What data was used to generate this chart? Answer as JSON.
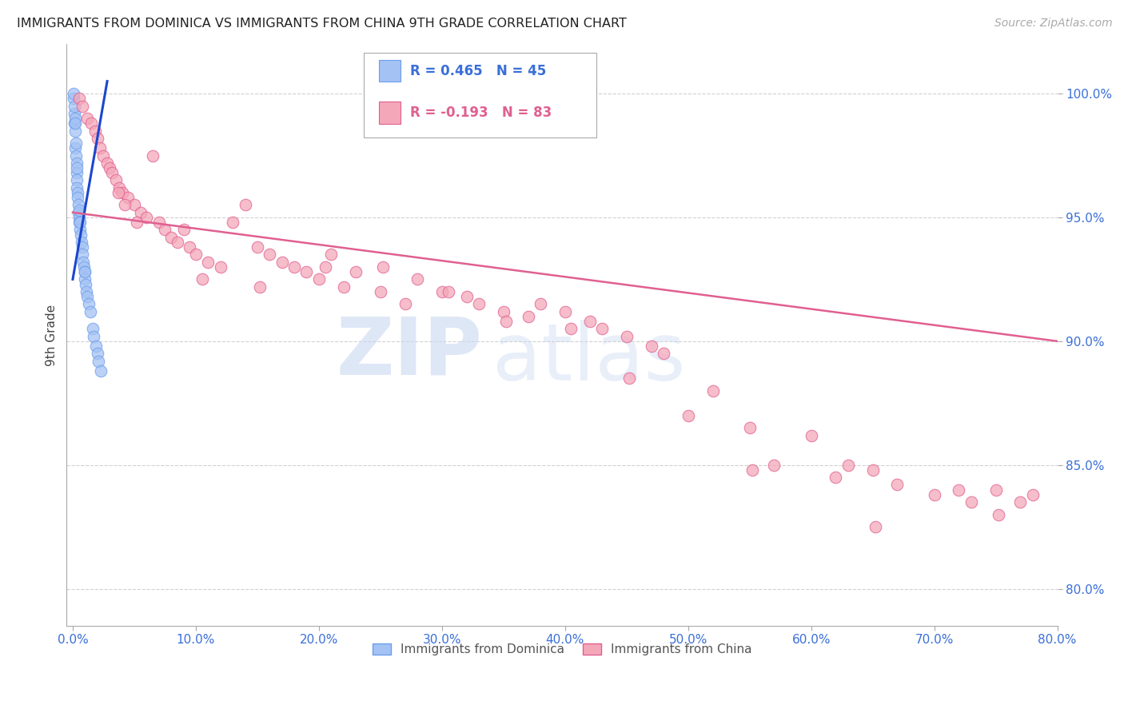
{
  "title": "IMMIGRANTS FROM DOMINICA VS IMMIGRANTS FROM CHINA 9TH GRADE CORRELATION CHART",
  "source": "Source: ZipAtlas.com",
  "ylabel": "9th Grade",
  "x_tick_labels": [
    "0.0%",
    "10.0%",
    "20.0%",
    "30.0%",
    "40.0%",
    "50.0%",
    "60.0%",
    "70.0%",
    "80.0%"
  ],
  "x_tick_values": [
    0.0,
    10.0,
    20.0,
    30.0,
    40.0,
    50.0,
    60.0,
    70.0,
    80.0
  ],
  "y_tick_labels": [
    "80.0%",
    "85.0%",
    "90.0%",
    "95.0%",
    "100.0%"
  ],
  "y_tick_values": [
    80.0,
    85.0,
    90.0,
    95.0,
    100.0
  ],
  "xlim": [
    -0.5,
    80.0
  ],
  "ylim": [
    78.5,
    102.0
  ],
  "dominica_color": "#a4c2f4",
  "china_color": "#f4a7b9",
  "dominica_edge": "#6d9eeb",
  "china_edge": "#e06090",
  "blue_line_color": "#1a47cc",
  "pink_line_color": "#e06090",
  "R_dominica": 0.465,
  "N_dominica": 45,
  "R_china": -0.193,
  "N_china": 83,
  "legend_label1": "Immigrants from Dominica",
  "legend_label2": "Immigrants from China",
  "watermark_zip": "ZIP",
  "watermark_atlas": "atlas",
  "blue_line_x0": 0.0,
  "blue_line_y0": 92.5,
  "blue_line_x1": 2.8,
  "blue_line_y1": 100.5,
  "pink_line_x0": 0.0,
  "pink_line_y0": 95.2,
  "pink_line_x1": 80.0,
  "pink_line_y1": 90.0,
  "dom_x": [
    0.15,
    0.15,
    0.2,
    0.2,
    0.25,
    0.25,
    0.3,
    0.3,
    0.3,
    0.35,
    0.35,
    0.4,
    0.4,
    0.45,
    0.45,
    0.5,
    0.5,
    0.55,
    0.6,
    0.6,
    0.65,
    0.7,
    0.75,
    0.8,
    0.85,
    0.9,
    0.95,
    1.0,
    1.0,
    1.05,
    1.1,
    1.2,
    1.3,
    1.4,
    1.6,
    1.7,
    1.9,
    2.0,
    2.1,
    2.3,
    0.05,
    0.08,
    0.12,
    0.18,
    0.22
  ],
  "dom_y": [
    98.8,
    99.2,
    98.5,
    97.8,
    97.5,
    98.0,
    97.2,
    96.8,
    97.0,
    96.5,
    96.2,
    96.0,
    95.8,
    95.5,
    95.2,
    95.0,
    95.3,
    94.8,
    94.5,
    94.8,
    94.3,
    94.0,
    93.8,
    93.5,
    93.2,
    93.0,
    92.8,
    92.5,
    92.8,
    92.3,
    92.0,
    91.8,
    91.5,
    91.2,
    90.5,
    90.2,
    89.8,
    89.5,
    89.2,
    88.8,
    99.8,
    100.0,
    99.5,
    99.0,
    98.8
  ],
  "chi_x": [
    0.5,
    0.8,
    1.2,
    1.5,
    1.8,
    2.0,
    2.2,
    2.5,
    2.8,
    3.0,
    3.2,
    3.5,
    3.8,
    4.0,
    4.5,
    5.0,
    5.5,
    6.0,
    6.5,
    7.0,
    7.5,
    8.0,
    8.5,
    9.0,
    9.5,
    10.0,
    11.0,
    12.0,
    13.0,
    14.0,
    15.0,
    16.0,
    17.0,
    18.0,
    19.0,
    20.0,
    21.0,
    22.0,
    23.0,
    25.0,
    27.0,
    28.0,
    30.0,
    32.0,
    33.0,
    35.0,
    37.0,
    38.0,
    40.0,
    42.0,
    43.0,
    45.0,
    47.0,
    48.0,
    50.0,
    52.0,
    55.0,
    57.0,
    60.0,
    62.0,
    63.0,
    65.0,
    67.0,
    70.0,
    72.0,
    73.0,
    75.0,
    77.0,
    78.0,
    10.5,
    20.5,
    30.5,
    40.5,
    5.2,
    15.2,
    25.2,
    35.2,
    45.2,
    55.2,
    65.2,
    75.2,
    3.7,
    4.2
  ],
  "chi_y": [
    99.8,
    99.5,
    99.0,
    98.8,
    98.5,
    98.2,
    97.8,
    97.5,
    97.2,
    97.0,
    96.8,
    96.5,
    96.2,
    96.0,
    95.8,
    95.5,
    95.2,
    95.0,
    97.5,
    94.8,
    94.5,
    94.2,
    94.0,
    94.5,
    93.8,
    93.5,
    93.2,
    93.0,
    94.8,
    95.5,
    93.8,
    93.5,
    93.2,
    93.0,
    92.8,
    92.5,
    93.5,
    92.2,
    92.8,
    92.0,
    91.5,
    92.5,
    92.0,
    91.8,
    91.5,
    91.2,
    91.0,
    91.5,
    91.2,
    90.8,
    90.5,
    90.2,
    89.8,
    89.5,
    87.0,
    88.0,
    86.5,
    85.0,
    86.2,
    84.5,
    85.0,
    84.8,
    84.2,
    83.8,
    84.0,
    83.5,
    84.0,
    83.5,
    83.8,
    92.5,
    93.0,
    92.0,
    90.5,
    94.8,
    92.2,
    93.0,
    90.8,
    88.5,
    84.8,
    82.5,
    83.0,
    96.0,
    95.5
  ]
}
